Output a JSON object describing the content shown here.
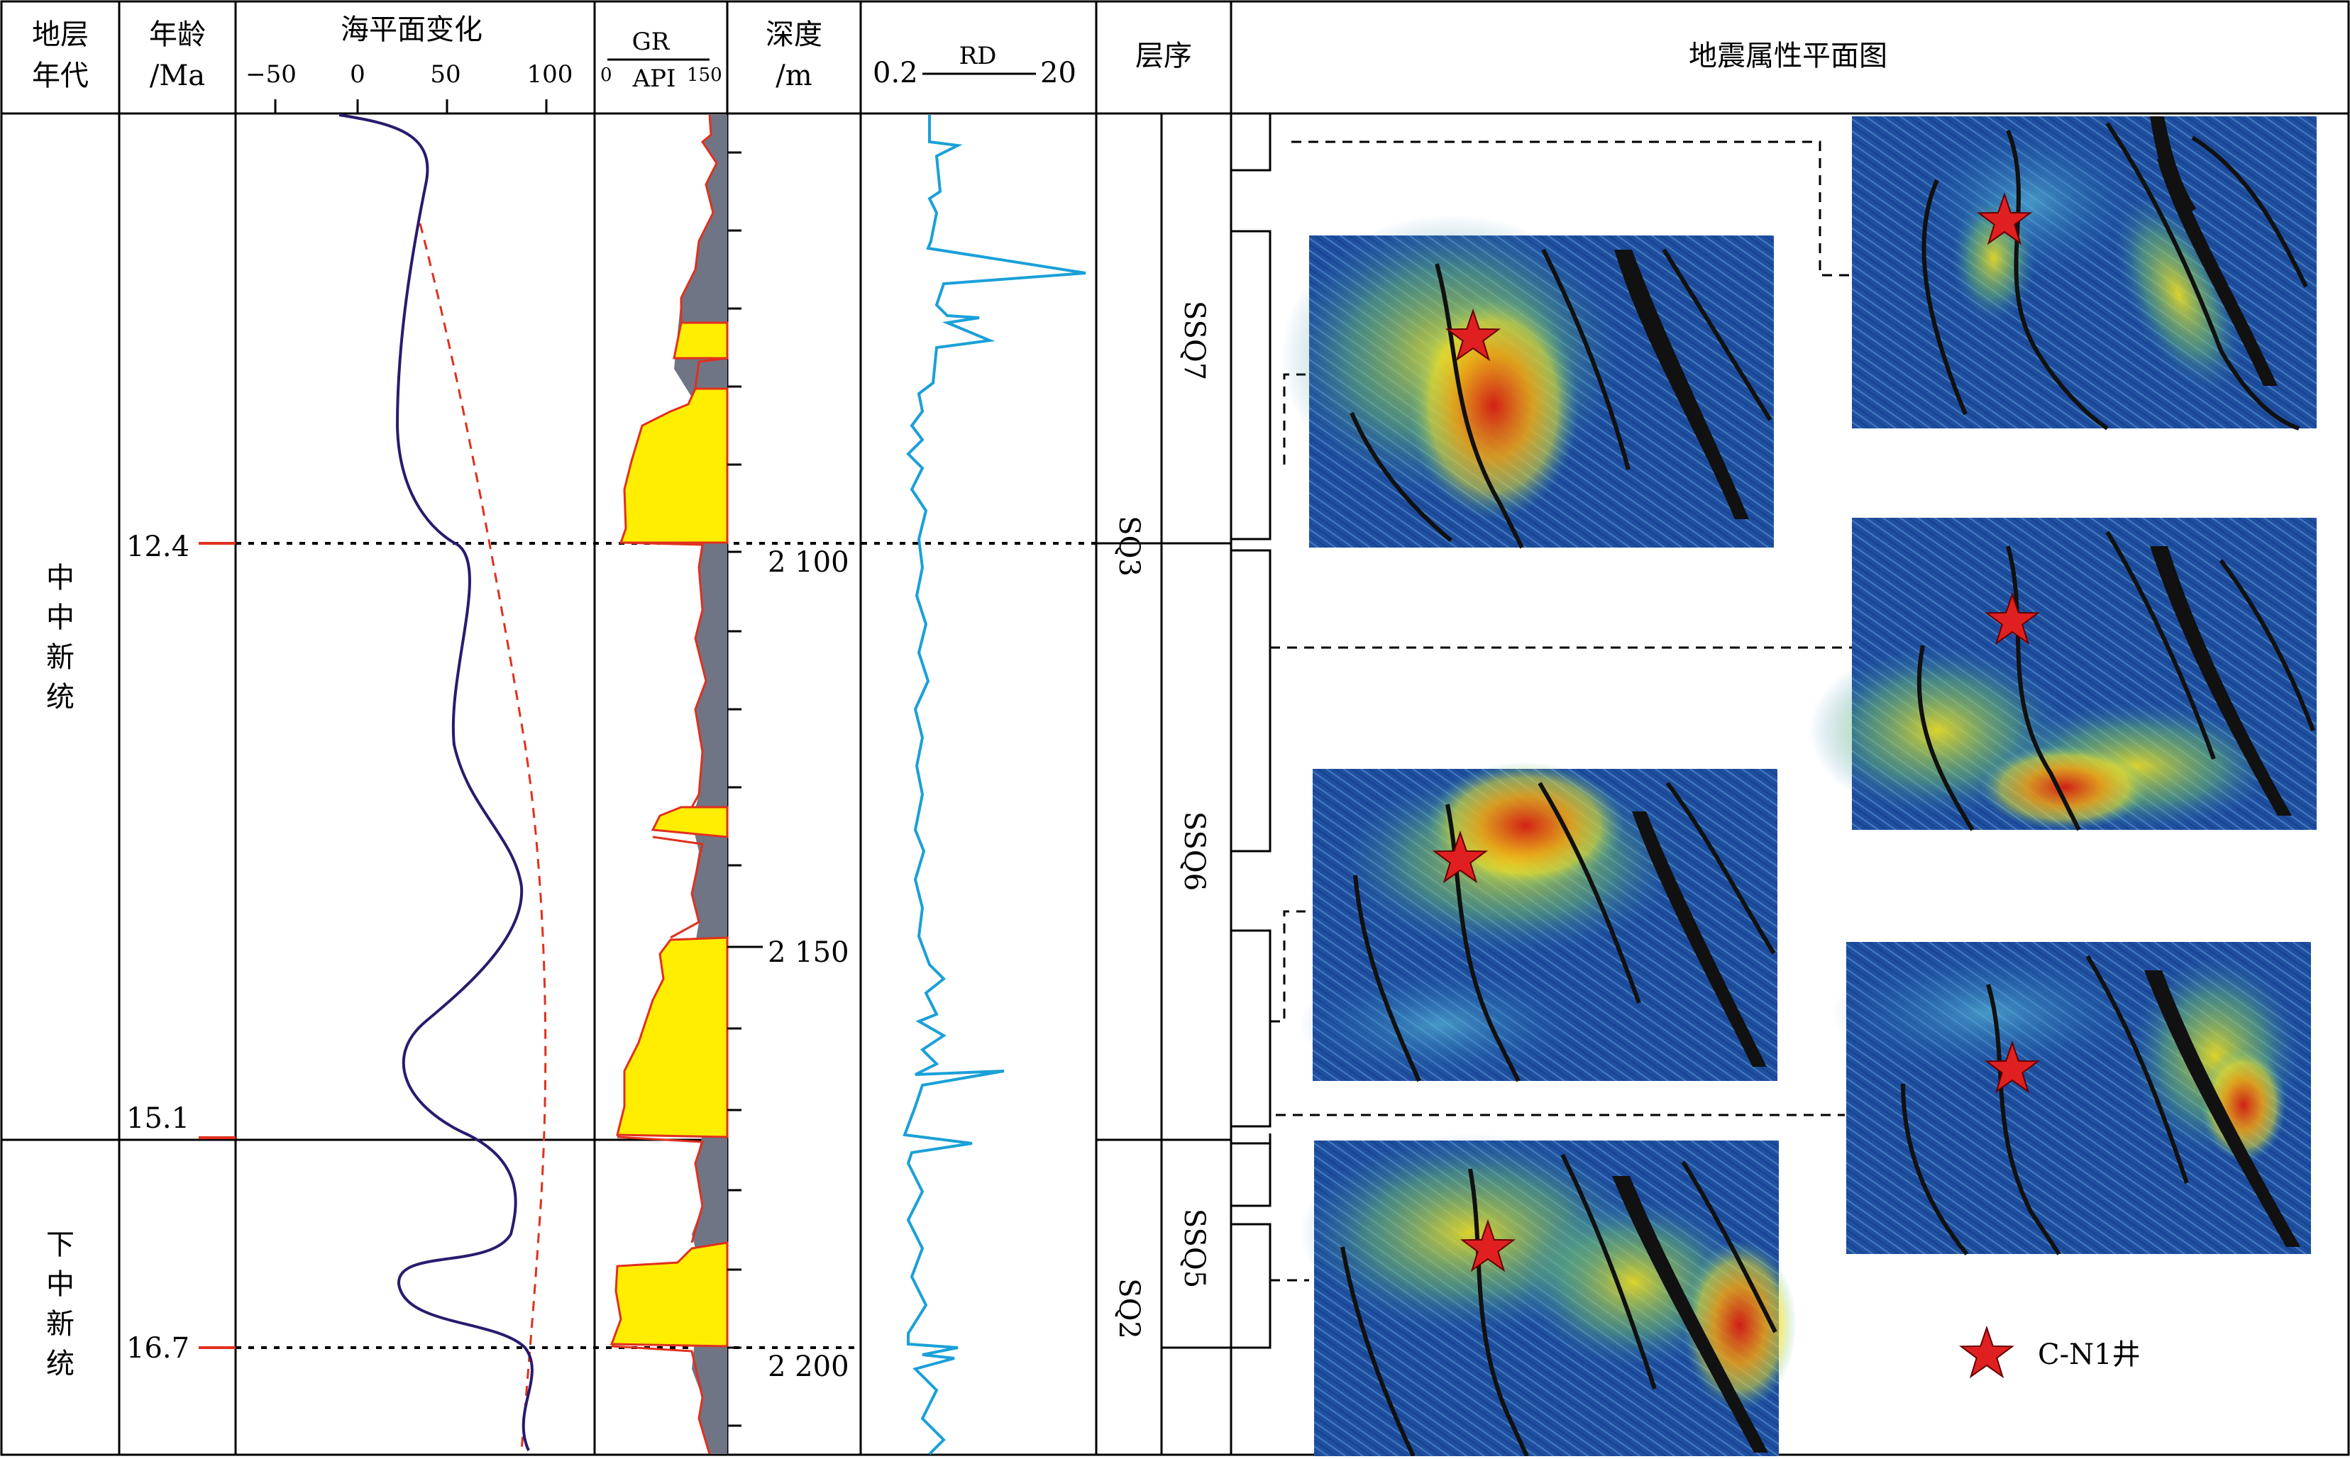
{
  "headers": {
    "strat_age_l1": "地层",
    "strat_age_l2": "年代",
    "age_l1": "年龄",
    "age_l2": "/Ma",
    "sealevel": "海平面变化",
    "gr_name": "GR",
    "gr_unit": "API",
    "gr_min": "0",
    "gr_max": "150",
    "depth_l1": "深度",
    "depth_l2": "/m",
    "rd_name": "RD",
    "rd_min": "0.2",
    "rd_max": "20",
    "sequence": "层序",
    "seismic": "地震属性平面图"
  },
  "sealevel_ticks": [
    "−50",
    "0",
    "50",
    "100"
  ],
  "series_upper": [
    "中",
    "中",
    "新",
    "统"
  ],
  "series_lower": [
    "下",
    "中",
    "新",
    "统"
  ],
  "ages": [
    "12.4",
    "15.1",
    "16.7"
  ],
  "depths": [
    "2 100",
    "2 150",
    "2 200"
  ],
  "sequences_major": [
    "SQ3",
    "SQ2"
  ],
  "sequences_minor": [
    "SSQ7",
    "SSQ6",
    "SSQ5"
  ],
  "legend": {
    "label": "C-N1井"
  },
  "colors": {
    "sealevel_curve": "#2a1a6e",
    "sealevel_trend": "#e0301e",
    "gr_fill": "#ffee00",
    "gr_shale": "#6f7585",
    "gr_line": "#e0301e",
    "rd_curve": "#1aa0d8",
    "star": "#e02020",
    "map_base": "#1f4fa0"
  }
}
